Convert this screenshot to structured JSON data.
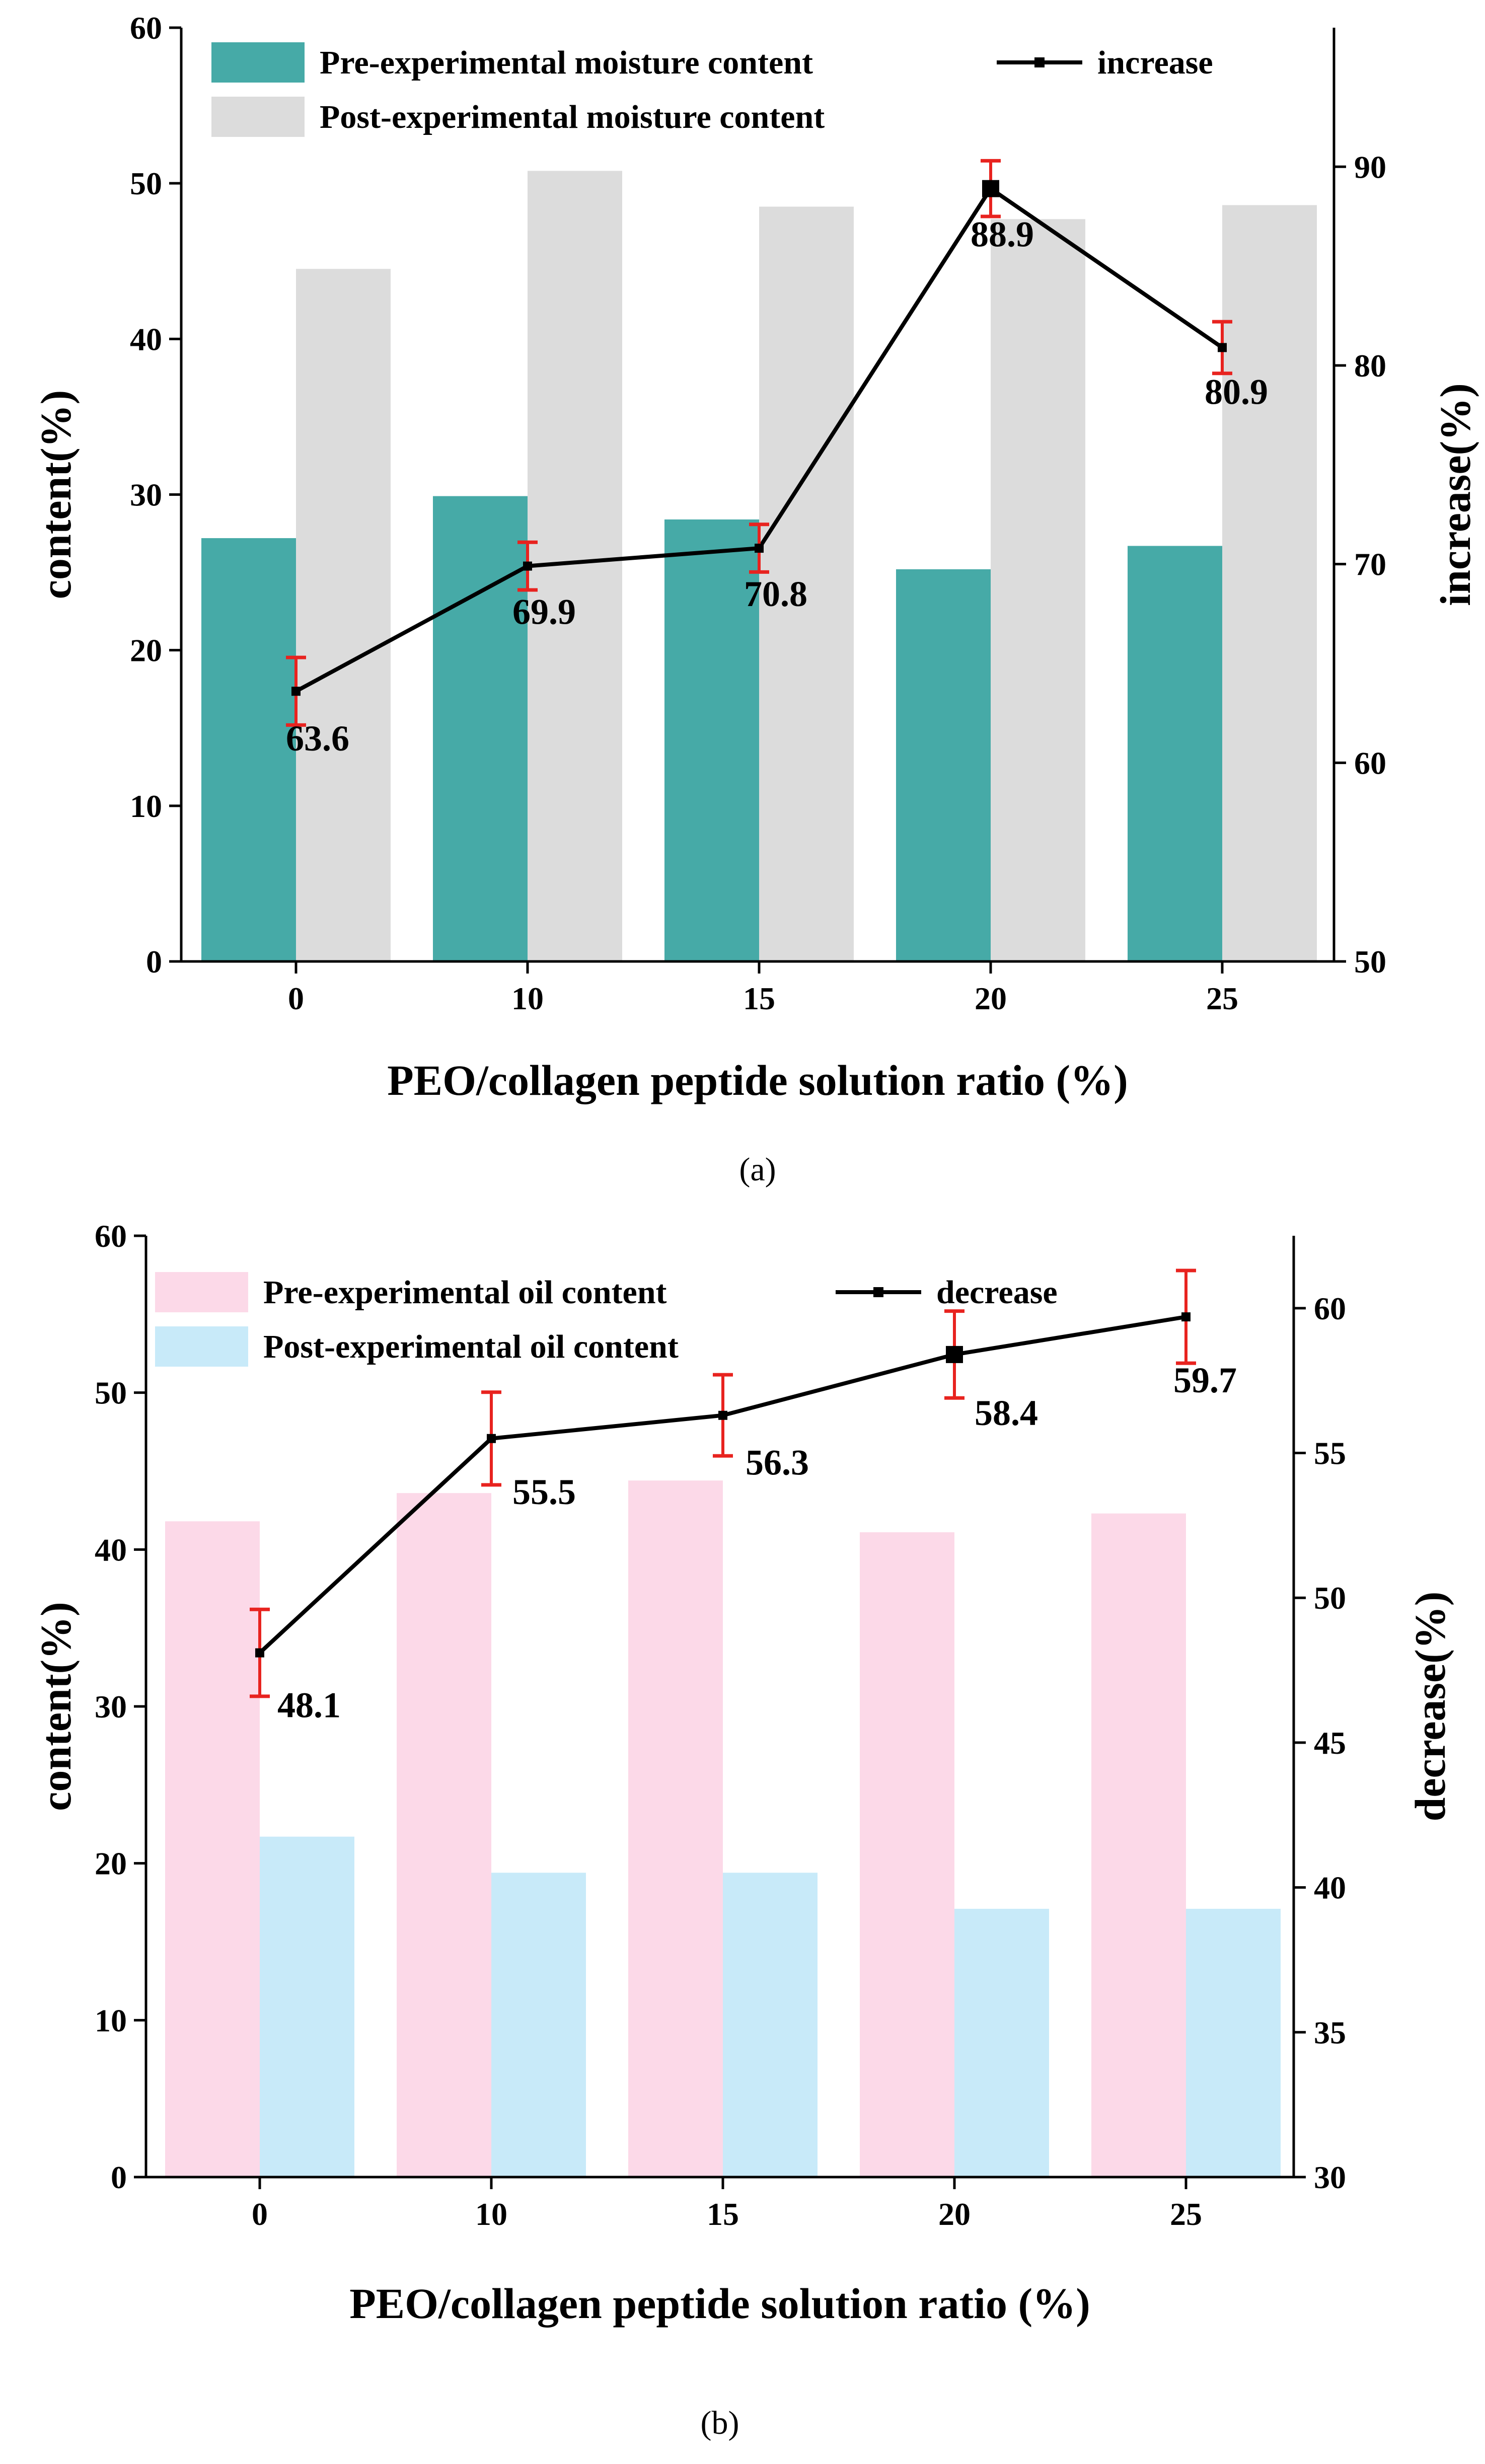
{
  "chart_data": [
    {
      "type": "bar",
      "panel_label": "(a)",
      "categories": [
        "0",
        "10",
        "15",
        "20",
        "25"
      ],
      "xlabel": "PEO/collagen peptide solution ratio (%)",
      "ylabel": "content(%)",
      "ylim": [
        0,
        60
      ],
      "yticks": [
        "0",
        "10",
        "20",
        "30",
        "40",
        "50",
        "60"
      ],
      "y2label": "increase(%)",
      "y2lim": [
        50,
        97
      ],
      "y2ticks": [
        "50",
        "60",
        "70",
        "80",
        "90"
      ],
      "series": [
        {
          "name": "Pre-experimental moisture content",
          "kind": "bar",
          "axis": "left",
          "color": "#46aaa7",
          "values": [
            27.2,
            29.9,
            28.4,
            25.2,
            26.7
          ]
        },
        {
          "name": "Post-experimental moisture content",
          "kind": "bar",
          "axis": "left",
          "color": "#dcdcdc",
          "values": [
            44.5,
            50.8,
            48.5,
            47.7,
            48.6
          ]
        },
        {
          "name": "increase",
          "kind": "line",
          "axis": "right",
          "color": "#000000",
          "values": [
            63.6,
            69.9,
            70.8,
            88.9,
            80.9
          ],
          "errors": [
            1.7,
            1.2,
            1.2,
            1.4,
            1.3
          ],
          "labels": [
            "63.6",
            "69.9",
            "70.8",
            "88.9",
            "80.9"
          ]
        }
      ],
      "legend_placement": "top-left"
    },
    {
      "type": "bar",
      "panel_label": "(b)",
      "categories": [
        "0",
        "10",
        "15",
        "20",
        "25"
      ],
      "xlabel": "PEO/collagen peptide solution ratio (%)",
      "ylabel": "content(%)",
      "ylim": [
        0,
        60
      ],
      "yticks": [
        "0",
        "10",
        "20",
        "30",
        "40",
        "50",
        "60"
      ],
      "y2label": "decrease(%)",
      "y2lim": [
        30,
        62.5
      ],
      "y2ticks": [
        "30",
        "35",
        "40",
        "45",
        "50",
        "55",
        "60"
      ],
      "series": [
        {
          "name": "Pre-experimental oil content",
          "kind": "bar",
          "axis": "left",
          "color": "#fcd9e8",
          "values": [
            41.8,
            43.6,
            44.4,
            41.1,
            42.3
          ]
        },
        {
          "name": "Post-experimental oil content",
          "kind": "bar",
          "axis": "left",
          "color": "#c8eaf9",
          "values": [
            21.7,
            19.4,
            19.4,
            17.1,
            17.1
          ]
        },
        {
          "name": "decrease",
          "kind": "line",
          "axis": "right",
          "color": "#000000",
          "values": [
            48.1,
            55.5,
            56.3,
            58.4,
            59.7
          ],
          "errors": [
            1.5,
            1.6,
            1.4,
            1.5,
            1.6
          ],
          "labels": [
            "48.1",
            "55.5",
            "56.3",
            "58.4",
            "59.7"
          ]
        }
      ],
      "legend_placement": "top-left"
    }
  ]
}
